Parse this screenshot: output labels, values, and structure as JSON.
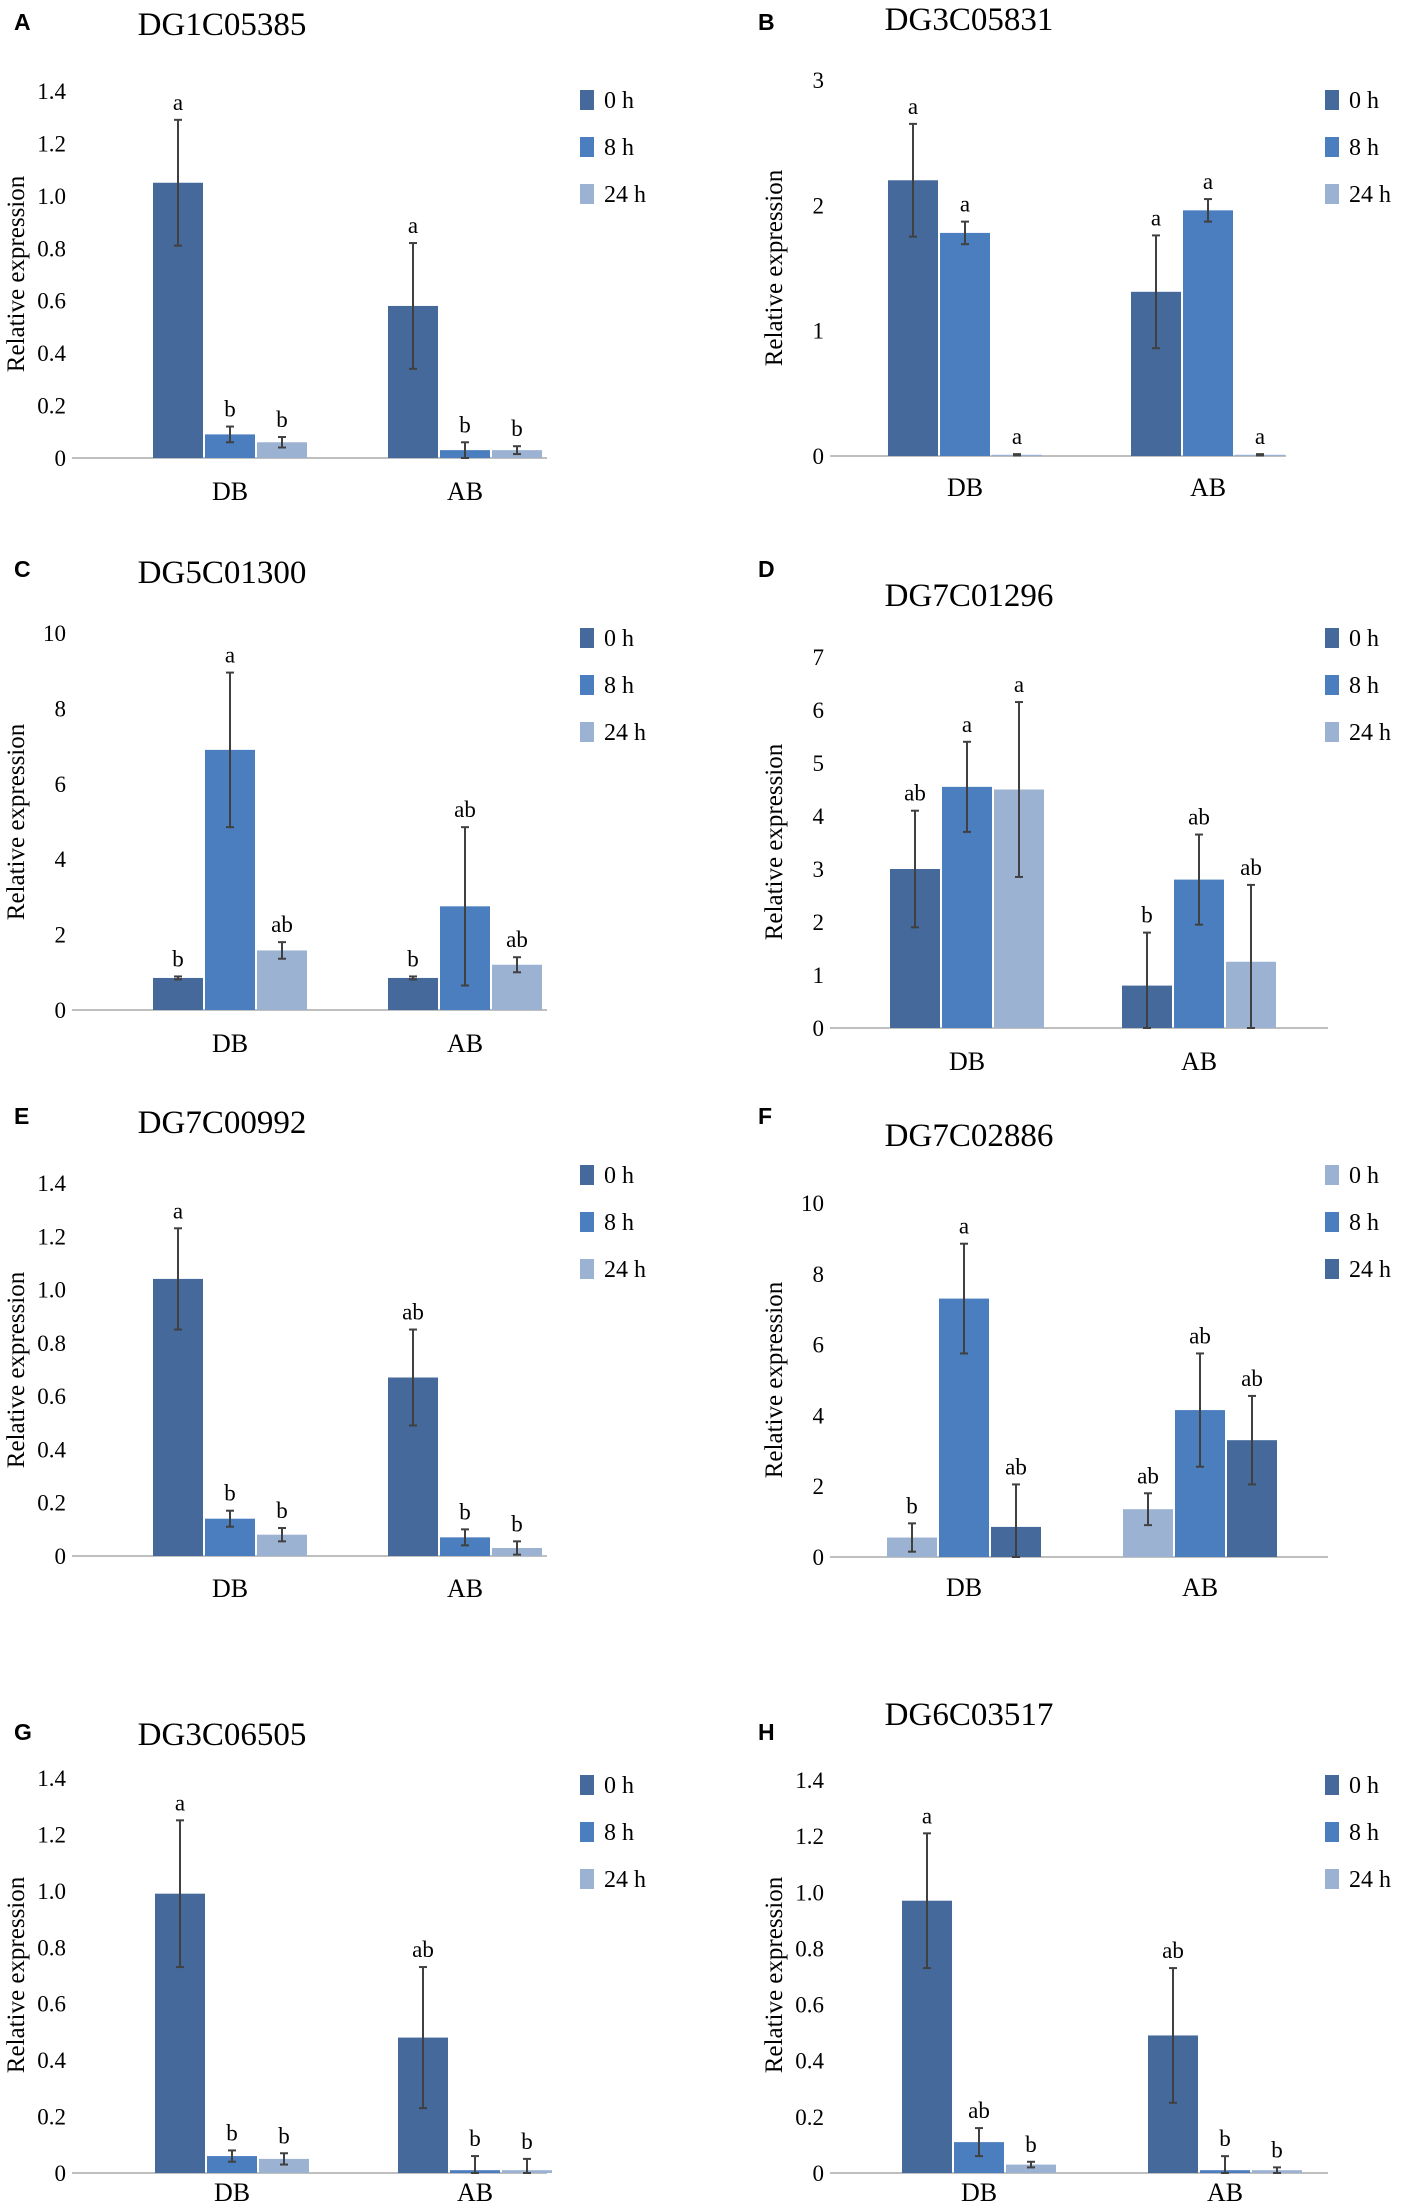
{
  "colors": {
    "0 h": "#44699a",
    "8 h": "#4a7ebf",
    "24 h": "#9cb2d3",
    "axis": "#bfbfbf",
    "error": "#404040"
  },
  "legend": [
    "0 h",
    "8 h",
    "24 h"
  ],
  "chart_data": [
    {
      "panel": "A",
      "type": "bar",
      "title": "DG1C05385",
      "ylabel": "Relative expression",
      "categories": [
        "DB",
        "AB"
      ],
      "ylim": [
        0,
        1.4
      ],
      "yticks": [
        "0",
        "0.2",
        "0.4",
        "0.6",
        "0.8",
        "1.0",
        "1.2",
        "1.4"
      ],
      "series": [
        {
          "name": "0 h",
          "values": [
            1.05,
            0.58
          ],
          "errors": [
            0.24,
            0.24
          ],
          "letters": [
            "a",
            "a"
          ]
        },
        {
          "name": "8 h",
          "values": [
            0.09,
            0.03
          ],
          "errors": [
            0.03,
            0.03
          ],
          "letters": [
            "b",
            "b"
          ]
        },
        {
          "name": "24 h",
          "values": [
            0.06,
            0.03
          ],
          "errors": [
            0.02,
            0.015
          ],
          "letters": [
            "b",
            "b"
          ]
        }
      ]
    },
    {
      "panel": "B",
      "type": "bar",
      "title": "DG3C05831",
      "ylabel": "Relative expression",
      "categories": [
        "DB",
        "AB"
      ],
      "ylim": [
        0,
        3
      ],
      "yticks": [
        "0",
        "1",
        "2",
        "3"
      ],
      "series": [
        {
          "name": "0 h",
          "values": [
            2.2,
            1.31
          ],
          "errors": [
            0.45,
            0.45
          ],
          "letters": [
            "a",
            "a"
          ]
        },
        {
          "name": "8 h",
          "values": [
            1.78,
            1.96
          ],
          "errors": [
            0.09,
            0.09
          ],
          "letters": [
            "a",
            "a"
          ]
        },
        {
          "name": "24 h",
          "values": [
            0.01,
            0.01
          ],
          "errors": [
            0.005,
            0.005
          ],
          "letters": [
            "a",
            "a"
          ]
        }
      ]
    },
    {
      "panel": "C",
      "type": "bar",
      "title": "DG5C01300",
      "ylabel": "Relative expression",
      "categories": [
        "DB",
        "AB"
      ],
      "ylim": [
        0,
        10
      ],
      "yticks": [
        "0",
        "2",
        "4",
        "6",
        "8",
        "10"
      ],
      "series": [
        {
          "name": "0 h",
          "values": [
            0.85,
            0.85
          ],
          "errors": [
            0.04,
            0.04
          ],
          "letters": [
            "b",
            "b"
          ]
        },
        {
          "name": "8 h",
          "values": [
            6.9,
            2.75
          ],
          "errors": [
            2.05,
            2.1
          ],
          "letters": [
            "a",
            "ab"
          ]
        },
        {
          "name": "24 h",
          "values": [
            1.58,
            1.2
          ],
          "errors": [
            0.22,
            0.2
          ],
          "letters": [
            "ab",
            "ab"
          ]
        }
      ]
    },
    {
      "panel": "D",
      "type": "bar",
      "title": "DG7C01296",
      "ylabel": "Relative expression",
      "categories": [
        "DB",
        "AB"
      ],
      "ylim": [
        0,
        7
      ],
      "yticks": [
        "0",
        "1",
        "2",
        "3",
        "4",
        "5",
        "6",
        "7"
      ],
      "series": [
        {
          "name": "0 h",
          "values": [
            3.0,
            0.8
          ],
          "errors": [
            1.1,
            1.0
          ],
          "letters": [
            "ab",
            "b"
          ]
        },
        {
          "name": "8 h",
          "values": [
            4.55,
            2.8
          ],
          "errors": [
            0.85,
            0.85
          ],
          "letters": [
            "a",
            "ab"
          ]
        },
        {
          "name": "24 h",
          "values": [
            4.5,
            1.25
          ],
          "errors": [
            1.65,
            1.45
          ],
          "letters": [
            "a",
            "ab"
          ]
        }
      ]
    },
    {
      "panel": "E",
      "type": "bar",
      "title": "DG7C00992",
      "ylabel": "Relative expression",
      "categories": [
        "DB",
        "AB"
      ],
      "ylim": [
        0,
        1.4
      ],
      "yticks": [
        "0",
        "0.2",
        "0.4",
        "0.6",
        "0.8",
        "1.0",
        "1.2",
        "1.4"
      ],
      "series": [
        {
          "name": "0 h",
          "values": [
            1.04,
            0.67
          ],
          "errors": [
            0.19,
            0.18
          ],
          "letters": [
            "a",
            "ab"
          ]
        },
        {
          "name": "8 h",
          "values": [
            0.14,
            0.07
          ],
          "errors": [
            0.03,
            0.03
          ],
          "letters": [
            "b",
            "b"
          ]
        },
        {
          "name": "24 h",
          "values": [
            0.08,
            0.03
          ],
          "errors": [
            0.025,
            0.025
          ],
          "letters": [
            "b",
            "b"
          ]
        }
      ]
    },
    {
      "panel": "F",
      "type": "bar",
      "title": "DG7C02886",
      "ylabel": "Relative expression",
      "categories": [
        "DB",
        "AB"
      ],
      "ylim": [
        0,
        10
      ],
      "yticks": [
        "0",
        "2",
        "4",
        "6",
        "8",
        "10"
      ],
      "series": [
        {
          "name": "0 h",
          "color": "#9cb2d3",
          "values": [
            0.55,
            1.35
          ],
          "errors": [
            0.4,
            0.45
          ],
          "letters": [
            "b",
            "ab"
          ]
        },
        {
          "name": "8 h",
          "color": "#4a7ebf",
          "values": [
            7.3,
            4.15
          ],
          "errors": [
            1.55,
            1.6
          ],
          "letters": [
            "a",
            "ab"
          ]
        },
        {
          "name": "24 h",
          "color": "#44699a",
          "values": [
            0.85,
            3.3
          ],
          "errors": [
            1.2,
            1.25
          ],
          "letters": [
            "ab",
            "ab"
          ]
        }
      ]
    },
    {
      "panel": "G",
      "type": "bar",
      "title": "DG3C06505",
      "ylabel": "Relative expression",
      "categories": [
        "DB",
        "AB"
      ],
      "ylim": [
        0,
        1.4
      ],
      "yticks": [
        "0",
        "0.2",
        "0.4",
        "0.6",
        "0.8",
        "1.0",
        "1.2",
        "1.4"
      ],
      "series": [
        {
          "name": "0 h",
          "values": [
            0.99,
            0.48
          ],
          "errors": [
            0.26,
            0.25
          ],
          "letters": [
            "a",
            "ab"
          ]
        },
        {
          "name": "8 h",
          "values": [
            0.06,
            0.01
          ],
          "errors": [
            0.02,
            0.05
          ],
          "letters": [
            "b",
            "b"
          ]
        },
        {
          "name": "24 h",
          "values": [
            0.05,
            0.01
          ],
          "errors": [
            0.02,
            0.04
          ],
          "letters": [
            "b",
            "b"
          ]
        }
      ]
    },
    {
      "panel": "H",
      "type": "bar",
      "title": "DG6C03517",
      "ylabel": "Relative expression",
      "categories": [
        "DB",
        "AB"
      ],
      "ylim": [
        0,
        1.4
      ],
      "yticks": [
        "0",
        "0.2",
        "0.4",
        "0.6",
        "0.8",
        "1.0",
        "1.2",
        "1.4"
      ],
      "series": [
        {
          "name": "0 h",
          "values": [
            0.97,
            0.49
          ],
          "errors": [
            0.24,
            0.24
          ],
          "letters": [
            "a",
            "ab"
          ]
        },
        {
          "name": "8 h",
          "values": [
            0.11,
            0.01
          ],
          "errors": [
            0.05,
            0.05
          ],
          "letters": [
            "ab",
            "b"
          ]
        },
        {
          "name": "24 h",
          "values": [
            0.03,
            0.01
          ],
          "errors": [
            0.01,
            0.01
          ],
          "letters": [
            "b",
            "b"
          ]
        }
      ]
    }
  ]
}
